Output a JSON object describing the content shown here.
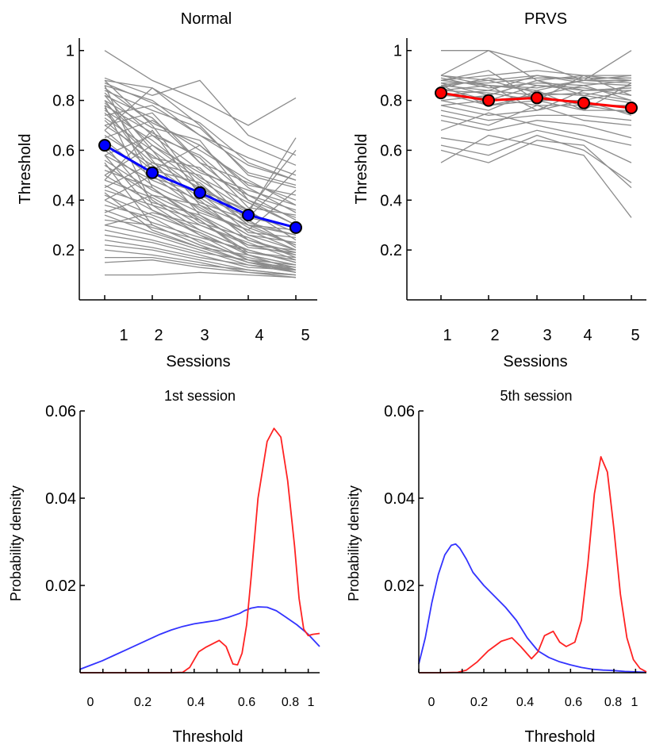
{
  "chart_data": [
    {
      "type": "line",
      "title": "Normal",
      "xlabel": "Sessions",
      "ylabel": "Threshold",
      "x_ticks": [
        "1",
        "2",
        "3",
        "4",
        "5"
      ],
      "y_ticks": [
        "1",
        "0.8",
        "0.6",
        "0.4",
        "0.2"
      ],
      "ylim": [
        0,
        1.05
      ],
      "grid": false,
      "series": [
        {
          "name": "",
          "color": "#0000ff",
          "x": [
            1,
            2,
            3,
            4,
            5
          ],
          "values": [
            0.62,
            0.51,
            0.43,
            0.34,
            0.29
          ]
        }
      ],
      "individual_lines_color": "#8c8c8c",
      "individual_lines": [
        [
          1.0,
          0.88,
          0.8,
          0.7,
          0.81
        ],
        [
          0.89,
          0.82,
          0.88,
          0.66,
          0.58
        ],
        [
          0.88,
          0.85,
          0.74,
          0.62,
          0.54
        ],
        [
          0.87,
          0.79,
          0.71,
          0.55,
          0.48
        ],
        [
          0.86,
          0.8,
          0.66,
          0.57,
          0.5
        ],
        [
          0.85,
          0.71,
          0.62,
          0.46,
          0.42
        ],
        [
          0.84,
          0.76,
          0.69,
          0.51,
          0.46
        ],
        [
          0.83,
          0.66,
          0.58,
          0.42,
          0.36
        ],
        [
          0.82,
          0.73,
          0.55,
          0.47,
          0.4
        ],
        [
          0.8,
          0.69,
          0.64,
          0.4,
          0.33
        ],
        [
          0.79,
          0.62,
          0.51,
          0.44,
          0.38
        ],
        [
          0.78,
          0.67,
          0.57,
          0.37,
          0.34
        ],
        [
          0.76,
          0.64,
          0.49,
          0.39,
          0.3
        ],
        [
          0.75,
          0.57,
          0.53,
          0.35,
          0.27
        ],
        [
          0.73,
          0.6,
          0.46,
          0.33,
          0.29
        ],
        [
          0.72,
          0.55,
          0.5,
          0.31,
          0.26
        ],
        [
          0.7,
          0.58,
          0.44,
          0.36,
          0.24
        ],
        [
          0.68,
          0.52,
          0.47,
          0.3,
          0.28
        ],
        [
          0.66,
          0.54,
          0.41,
          0.29,
          0.22
        ],
        [
          0.64,
          0.49,
          0.43,
          0.27,
          0.25
        ],
        [
          0.62,
          0.51,
          0.39,
          0.32,
          0.21
        ],
        [
          0.6,
          0.46,
          0.37,
          0.26,
          0.23
        ],
        [
          0.58,
          0.48,
          0.4,
          0.24,
          0.19
        ],
        [
          0.56,
          0.44,
          0.35,
          0.28,
          0.2
        ],
        [
          0.54,
          0.42,
          0.33,
          0.22,
          0.18
        ],
        [
          0.52,
          0.45,
          0.31,
          0.25,
          0.17
        ],
        [
          0.5,
          0.39,
          0.34,
          0.21,
          0.19
        ],
        [
          0.48,
          0.41,
          0.3,
          0.23,
          0.16
        ],
        [
          0.46,
          0.36,
          0.28,
          0.2,
          0.15
        ],
        [
          0.44,
          0.38,
          0.32,
          0.19,
          0.17
        ],
        [
          0.42,
          0.34,
          0.27,
          0.18,
          0.14
        ],
        [
          0.4,
          0.31,
          0.25,
          0.2,
          0.15
        ],
        [
          0.38,
          0.33,
          0.23,
          0.17,
          0.13
        ],
        [
          0.36,
          0.29,
          0.24,
          0.16,
          0.14
        ],
        [
          0.34,
          0.27,
          0.21,
          0.18,
          0.12
        ],
        [
          0.32,
          0.3,
          0.22,
          0.15,
          0.13
        ],
        [
          0.3,
          0.26,
          0.2,
          0.14,
          0.12
        ],
        [
          0.28,
          0.24,
          0.19,
          0.16,
          0.11
        ],
        [
          0.26,
          0.23,
          0.18,
          0.13,
          0.12
        ],
        [
          0.24,
          0.21,
          0.17,
          0.14,
          0.11
        ],
        [
          0.22,
          0.2,
          0.16,
          0.12,
          0.1
        ],
        [
          0.2,
          0.18,
          0.15,
          0.11,
          0.1
        ],
        [
          0.17,
          0.17,
          0.14,
          0.12,
          0.1
        ],
        [
          0.15,
          0.16,
          0.13,
          0.11,
          0.09
        ],
        [
          0.1,
          0.1,
          0.11,
          0.1,
          0.09
        ],
        [
          0.88,
          0.7,
          0.45,
          0.3,
          0.22
        ],
        [
          0.82,
          0.6,
          0.38,
          0.26,
          0.2
        ],
        [
          0.77,
          0.52,
          0.62,
          0.45,
          0.35
        ],
        [
          0.7,
          0.75,
          0.55,
          0.4,
          0.3
        ],
        [
          0.65,
          0.72,
          0.6,
          0.48,
          0.38
        ],
        [
          0.58,
          0.66,
          0.52,
          0.42,
          0.32
        ],
        [
          0.5,
          0.62,
          0.48,
          0.36,
          0.6
        ],
        [
          0.45,
          0.55,
          0.45,
          0.35,
          0.65
        ],
        [
          0.4,
          0.5,
          0.36,
          0.28,
          0.44
        ],
        [
          0.35,
          0.42,
          0.38,
          0.3,
          0.26
        ],
        [
          0.3,
          0.35,
          0.3,
          0.22,
          0.2
        ],
        [
          0.62,
          0.4,
          0.28,
          0.2,
          0.15
        ],
        [
          0.86,
          0.45,
          0.32,
          0.18,
          0.14
        ],
        [
          0.78,
          0.38,
          0.26,
          0.16,
          0.12
        ],
        [
          0.55,
          0.3,
          0.22,
          0.15,
          0.11
        ],
        [
          0.48,
          0.68,
          0.42,
          0.33,
          0.52
        ],
        [
          0.68,
          0.85,
          0.7,
          0.5,
          0.45
        ],
        [
          0.74,
          0.78,
          0.66,
          0.54,
          0.48
        ],
        [
          0.8,
          0.56,
          0.34,
          0.24,
          0.18
        ],
        [
          0.58,
          0.36,
          0.26,
          0.19,
          0.16
        ],
        [
          0.43,
          0.28,
          0.21,
          0.15,
          0.12
        ]
      ]
    },
    {
      "type": "line",
      "title": "PRVS",
      "xlabel": "Sessions",
      "ylabel": "Threshold",
      "x_ticks": [
        "1",
        "2",
        "3",
        "4",
        "5"
      ],
      "y_ticks": [
        "1",
        "0.8",
        "0.6",
        "0.4",
        "0.2"
      ],
      "ylim": [
        0,
        1.05
      ],
      "grid": false,
      "series": [
        {
          "name": "",
          "color": "#ff0000",
          "x": [
            1,
            2,
            3,
            4,
            5
          ],
          "values": [
            0.83,
            0.8,
            0.81,
            0.79,
            0.77
          ]
        }
      ],
      "individual_lines_color": "#8c8c8c",
      "individual_lines": [
        [
          1.0,
          1.0,
          0.95,
          0.88,
          1.0
        ],
        [
          0.9,
          1.0,
          0.88,
          0.9,
          0.9
        ],
        [
          0.9,
          0.88,
          0.9,
          0.88,
          0.9
        ],
        [
          0.89,
          0.85,
          0.87,
          0.86,
          0.88
        ],
        [
          0.88,
          0.86,
          0.85,
          0.88,
          0.87
        ],
        [
          0.87,
          0.82,
          0.88,
          0.84,
          0.85
        ],
        [
          0.86,
          0.88,
          0.83,
          0.82,
          0.86
        ],
        [
          0.85,
          0.8,
          0.86,
          0.85,
          0.82
        ],
        [
          0.84,
          0.83,
          0.8,
          0.8,
          0.84
        ],
        [
          0.83,
          0.78,
          0.82,
          0.83,
          0.8
        ],
        [
          0.82,
          0.81,
          0.78,
          0.78,
          0.78
        ],
        [
          0.8,
          0.76,
          0.84,
          0.76,
          0.76
        ],
        [
          0.78,
          0.74,
          0.76,
          0.8,
          0.74
        ],
        [
          0.76,
          0.72,
          0.74,
          0.74,
          0.72
        ],
        [
          0.74,
          0.7,
          0.78,
          0.72,
          0.7
        ],
        [
          0.72,
          0.68,
          0.72,
          0.7,
          0.65
        ],
        [
          0.68,
          0.75,
          0.7,
          0.66,
          0.62
        ],
        [
          0.65,
          0.62,
          0.68,
          0.64,
          0.55
        ],
        [
          0.62,
          0.58,
          0.66,
          0.6,
          0.47
        ],
        [
          0.6,
          0.55,
          0.64,
          0.62,
          0.45
        ],
        [
          0.55,
          0.66,
          0.62,
          0.58,
          0.33
        ],
        [
          0.88,
          0.9,
          0.92,
          0.9,
          0.88
        ],
        [
          0.87,
          0.87,
          0.89,
          0.89,
          0.89
        ],
        [
          0.86,
          0.84,
          0.9,
          0.87,
          0.86
        ],
        [
          0.85,
          0.89,
          0.86,
          0.84,
          0.84
        ],
        [
          0.84,
          0.86,
          0.84,
          0.88,
          0.88
        ],
        [
          0.88,
          0.92,
          0.8,
          0.9,
          0.82
        ],
        [
          0.82,
          0.84,
          0.82,
          0.86,
          0.8
        ],
        [
          0.8,
          0.82,
          0.88,
          0.82,
          0.79
        ],
        [
          0.78,
          0.8,
          0.82,
          0.78,
          0.75
        ],
        [
          0.9,
          0.86,
          0.76,
          0.84,
          0.85
        ],
        [
          0.86,
          0.78,
          0.8,
          0.76,
          0.87
        ]
      ]
    },
    {
      "type": "line",
      "title": "1st session",
      "xlabel": "Threshold",
      "ylabel": "Probability density",
      "x_ticks": [
        "0",
        "0.2",
        "0.4",
        "0.6",
        "0.8",
        "1"
      ],
      "y_ticks": [
        "0.06",
        "0.04",
        "0.02"
      ],
      "xlim": [
        0,
        1.05
      ],
      "ylim": [
        0,
        0.06
      ],
      "grid": false,
      "series": [
        {
          "name": "",
          "color": "#3333ff",
          "x": [
            0.0,
            0.05,
            0.1,
            0.15,
            0.2,
            0.25,
            0.3,
            0.35,
            0.4,
            0.45,
            0.5,
            0.55,
            0.6,
            0.65,
            0.7,
            0.72,
            0.75,
            0.78,
            0.82,
            0.86,
            0.9,
            0.95,
            1.0,
            1.05
          ],
          "values": [
            0.0008,
            0.0018,
            0.0028,
            0.004,
            0.0052,
            0.0064,
            0.0076,
            0.0088,
            0.0098,
            0.0106,
            0.0112,
            0.0116,
            0.012,
            0.0127,
            0.0136,
            0.0142,
            0.0148,
            0.0151,
            0.015,
            0.0142,
            0.0128,
            0.011,
            0.0088,
            0.006
          ]
        },
        {
          "name": "",
          "color": "#ff2222",
          "x": [
            0.0,
            0.1,
            0.2,
            0.3,
            0.4,
            0.45,
            0.48,
            0.52,
            0.55,
            0.58,
            0.61,
            0.64,
            0.67,
            0.69,
            0.71,
            0.73,
            0.75,
            0.78,
            0.82,
            0.85,
            0.88,
            0.91,
            0.94,
            0.96,
            0.98,
            1.0,
            1.02,
            1.05
          ],
          "values": [
            0.0,
            0.0,
            0.0,
            0.0,
            0.0,
            0.0001,
            0.0012,
            0.0048,
            0.0058,
            0.0066,
            0.0074,
            0.006,
            0.002,
            0.0018,
            0.0045,
            0.011,
            0.022,
            0.04,
            0.053,
            0.056,
            0.054,
            0.044,
            0.029,
            0.017,
            0.01,
            0.0085,
            0.0088,
            0.009
          ]
        }
      ]
    },
    {
      "type": "line",
      "title": "5th session",
      "xlabel": "Threshold",
      "ylabel": "Probability density",
      "x_ticks": [
        "0",
        "0.2",
        "0.4",
        "0.6",
        "0.8",
        "1"
      ],
      "y_ticks": [
        "0.06",
        "0.04",
        "0.02"
      ],
      "xlim": [
        0,
        1.05
      ],
      "ylim": [
        0,
        0.06
      ],
      "grid": false,
      "series": [
        {
          "name": "",
          "color": "#3333ff",
          "x": [
            0.0,
            0.03,
            0.06,
            0.09,
            0.12,
            0.15,
            0.17,
            0.19,
            0.22,
            0.25,
            0.3,
            0.35,
            0.4,
            0.45,
            0.5,
            0.55,
            0.6,
            0.65,
            0.7,
            0.75,
            0.8,
            0.85,
            0.9,
            0.95,
            1.0,
            1.05
          ],
          "values": [
            0.002,
            0.008,
            0.016,
            0.0225,
            0.027,
            0.0292,
            0.0295,
            0.0285,
            0.026,
            0.023,
            0.02,
            0.0175,
            0.015,
            0.012,
            0.008,
            0.005,
            0.0035,
            0.0025,
            0.0018,
            0.0012,
            0.0008,
            0.0006,
            0.0005,
            0.0003,
            0.0002,
            0.0001
          ]
        },
        {
          "name": "",
          "color": "#ff2222",
          "x": [
            0.0,
            0.1,
            0.18,
            0.22,
            0.27,
            0.32,
            0.38,
            0.43,
            0.47,
            0.52,
            0.55,
            0.58,
            0.62,
            0.65,
            0.68,
            0.72,
            0.75,
            0.78,
            0.81,
            0.84,
            0.87,
            0.9,
            0.93,
            0.96,
            0.99,
            1.02,
            1.05
          ],
          "values": [
            0.0,
            0.0,
            0.0001,
            0.0006,
            0.0025,
            0.005,
            0.0072,
            0.008,
            0.006,
            0.0032,
            0.0048,
            0.0085,
            0.0095,
            0.007,
            0.006,
            0.007,
            0.012,
            0.025,
            0.041,
            0.0495,
            0.046,
            0.033,
            0.018,
            0.008,
            0.003,
            0.001,
            0.0002
          ]
        }
      ]
    }
  ]
}
